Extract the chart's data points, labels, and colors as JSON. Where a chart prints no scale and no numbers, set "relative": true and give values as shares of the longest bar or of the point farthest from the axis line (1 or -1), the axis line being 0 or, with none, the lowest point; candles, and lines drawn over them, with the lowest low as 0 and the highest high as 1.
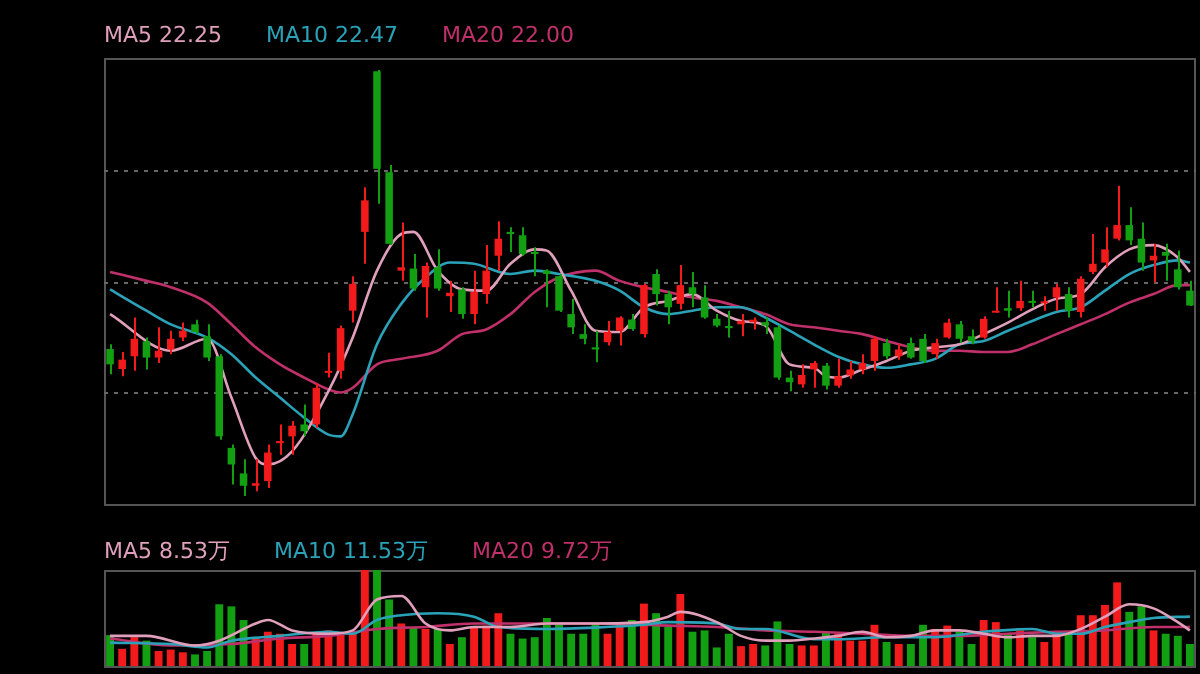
{
  "chart_data": [
    {
      "type": "candlestick",
      "relative": true,
      "grid": true,
      "legend": "top left",
      "marker": "none",
      "categories": [
        null,
        null,
        null,
        null,
        null,
        null,
        null,
        null,
        null,
        null,
        null,
        null,
        null,
        null,
        null,
        null,
        null,
        null,
        null,
        null,
        null,
        null,
        null,
        null,
        null,
        null,
        null,
        null,
        null,
        null,
        null,
        null,
        null,
        null,
        null,
        null,
        null,
        null,
        null,
        null,
        null,
        null,
        null,
        null,
        null,
        null,
        null,
        null,
        null,
        null,
        null,
        null,
        null,
        null,
        null,
        null,
        null,
        null,
        null,
        null,
        null,
        null,
        null,
        null,
        null,
        null,
        null,
        null,
        null,
        null,
        null,
        null,
        null,
        null,
        null,
        null,
        null,
        null,
        null,
        null,
        null,
        null,
        null,
        null,
        null,
        null,
        null,
        null,
        null,
        null
      ],
      "ohlc": [
        [
          0.345,
          0.356,
          0.286,
          0.309
        ],
        [
          0.298,
          0.338,
          0.281,
          0.32
        ],
        [
          0.328,
          0.419,
          0.294,
          0.369
        ],
        [
          0.363,
          0.372,
          0.297,
          0.325
        ],
        [
          0.325,
          0.396,
          0.312,
          0.341
        ],
        [
          0.344,
          0.388,
          0.333,
          0.369
        ],
        [
          0.372,
          0.407,
          0.364,
          0.388
        ],
        [
          0.403,
          0.414,
          0.38,
          0.385
        ],
        [
          0.375,
          0.403,
          0.317,
          0.325
        ],
        [
          0.328,
          0.333,
          0.132,
          0.14
        ],
        [
          0.113,
          0.121,
          0.027,
          0.074
        ],
        [
          0.053,
          0.086,
          0,
          0.024
        ],
        [
          0.024,
          0.086,
          0.011,
          0.03
        ],
        [
          0.035,
          0.121,
          0.019,
          0.102
        ],
        [
          0.124,
          0.168,
          0.097,
          0.129
        ],
        [
          0.14,
          0.176,
          0.097,
          0.165
        ],
        [
          0.168,
          0.215,
          0.14,
          0.152
        ],
        [
          0.168,
          0.265,
          0.16,
          0.254
        ],
        [
          0.289,
          0.336,
          0.278,
          0.294
        ],
        [
          0.294,
          0.4,
          0.275,
          0.394
        ],
        [
          0.435,
          0.516,
          0.407,
          0.498
        ],
        [
          0.62,
          0.725,
          0.545,
          0.694
        ],
        [
          0.997,
          1,
          0.686,
          0.768
        ],
        [
          0.76,
          0.777,
          0.589,
          0.592
        ],
        [
          0.529,
          0.642,
          0.505,
          0.537
        ],
        [
          0.534,
          0.568,
          0.482,
          0.487
        ],
        [
          0.49,
          0.548,
          0.419,
          0.54
        ],
        [
          0.537,
          0.579,
          0.482,
          0.487
        ],
        [
          0.469,
          0.505,
          0.432,
          0.477
        ],
        [
          0.485,
          0.49,
          0.416,
          0.427
        ],
        [
          0.427,
          0.529,
          0.403,
          0.479
        ],
        [
          0.474,
          0.589,
          0.451,
          0.529
        ],
        [
          0.564,
          0.645,
          0.529,
          0.604
        ],
        [
          0.62,
          0.631,
          0.573,
          0.615
        ],
        [
          0.612,
          0.631,
          0.564,
          0.568
        ],
        [
          0.573,
          0.584,
          0.516,
          0.568
        ],
        [
          0.529,
          0.532,
          0.443,
          0.521
        ],
        [
          0.516,
          0.521,
          0.432,
          0.435
        ],
        [
          0.427,
          0.463,
          0.38,
          0.396
        ],
        [
          0.38,
          0.403,
          0.356,
          0.369
        ],
        [
          0.349,
          0.388,
          0.314,
          0.344
        ],
        [
          0.361,
          0.411,
          0.353,
          0.385
        ],
        [
          0.388,
          0.422,
          0.353,
          0.419
        ],
        [
          0.414,
          0.427,
          0.388,
          0.392
        ],
        [
          0.38,
          0.498,
          0.372,
          0.495
        ],
        [
          0.521,
          0.532,
          0.447,
          0.474
        ],
        [
          0.474,
          0.482,
          0.403,
          0.443
        ],
        [
          0.451,
          0.542,
          0.438,
          0.495
        ],
        [
          0.49,
          0.526,
          0.443,
          0.474
        ],
        [
          0.466,
          0.495,
          0.416,
          0.419
        ],
        [
          0.416,
          0.427,
          0.396,
          0.4
        ],
        [
          0.399,
          0.435,
          0.372,
          0.394
        ],
        [
          0.403,
          0.427,
          0.375,
          0.411
        ],
        [
          0.408,
          0.419,
          0.391,
          0.414
        ],
        [
          0.408,
          0.419,
          0.38,
          0.4
        ],
        [
          0.396,
          0.4,
          0.273,
          0.278
        ],
        [
          0.278,
          0.294,
          0.246,
          0.267
        ],
        [
          0.262,
          0.309,
          0.254,
          0.284
        ],
        [
          0.297,
          0.317,
          0.254,
          0.312
        ],
        [
          0.306,
          0.312,
          0.25,
          0.259
        ],
        [
          0.259,
          0.322,
          0.254,
          0.281
        ],
        [
          0.283,
          0.317,
          0.275,
          0.297
        ],
        [
          0.297,
          0.333,
          0.286,
          0.312
        ],
        [
          0.317,
          0.375,
          0.294,
          0.369
        ],
        [
          0.359,
          0.369,
          0.322,
          0.328
        ],
        [
          0.328,
          0.356,
          0.32,
          0.344
        ],
        [
          0.359,
          0.372,
          0.322,
          0.325
        ],
        [
          0.369,
          0.38,
          0.312,
          0.317
        ],
        [
          0.333,
          0.369,
          0.322,
          0.359
        ],
        [
          0.372,
          0.416,
          0.369,
          0.407
        ],
        [
          0.403,
          0.411,
          0.359,
          0.369
        ],
        [
          0.375,
          0.391,
          0.356,
          0.363
        ],
        [
          0.372,
          0.422,
          0.369,
          0.416
        ],
        [
          0.432,
          0.49,
          0.43,
          0.435
        ],
        [
          0.441,
          0.482,
          0.419,
          0.435
        ],
        [
          0.441,
          0.505,
          0.435,
          0.458
        ],
        [
          0.458,
          0.482,
          0.443,
          0.454
        ],
        [
          0.454,
          0.469,
          0.435,
          0.457
        ],
        [
          0.466,
          0.498,
          0.435,
          0.49
        ],
        [
          0.474,
          0.49,
          0.419,
          0.435
        ],
        [
          0.432,
          0.516,
          0.419,
          0.51
        ],
        [
          0.526,
          0.615,
          0.521,
          0.545
        ],
        [
          0.548,
          0.631,
          0.537,
          0.579
        ],
        [
          0.604,
          0.728,
          0.6,
          0.636
        ],
        [
          0.636,
          0.678,
          0.589,
          0.6
        ],
        [
          0.604,
          0.642,
          0.529,
          0.548
        ],
        [
          0.553,
          0.592,
          0.501,
          0.564
        ],
        [
          0.573,
          0.592,
          0.505,
          0.564
        ],
        [
          0.532,
          0.576,
          0.485,
          0.49
        ],
        [
          0.482,
          0.505,
          0.446,
          0.447
        ]
      ],
      "colors": [
        "#12a012",
        "#f21a1a",
        "#f21a1a",
        "#12a012",
        "#f21a1a",
        "#f21a1a",
        "#f21a1a",
        "#12a012",
        "#12a012",
        "#12a012",
        "#12a012",
        "#12a012",
        "#f21a1a",
        "#f21a1a",
        "#f21a1a",
        "#f21a1a",
        "#12a012",
        "#f21a1a",
        "#f21a1a",
        "#f21a1a",
        "#f21a1a",
        "#f21a1a",
        "#12a012",
        "#12a012",
        "#f21a1a",
        "#12a012",
        "#f21a1a",
        "#12a012",
        "#f21a1a",
        "#12a012",
        "#f21a1a",
        "#f21a1a",
        "#f21a1a",
        "#12a012",
        "#12a012",
        "#12a012",
        "#12a012",
        "#12a012",
        "#12a012",
        "#12a012",
        "#12a012",
        "#f21a1a",
        "#f21a1a",
        "#12a012",
        "#f21a1a",
        "#12a012",
        "#12a012",
        "#f21a1a",
        "#12a012",
        "#12a012",
        "#12a012",
        "#12a012",
        "#f21a1a",
        "#f21a1a",
        "#12a012",
        "#12a012",
        "#12a012",
        "#f21a1a",
        "#f21a1a",
        "#12a012",
        "#f21a1a",
        "#f21a1a",
        "#f21a1a",
        "#f21a1a",
        "#12a012",
        "#f21a1a",
        "#12a012",
        "#12a012",
        "#f21a1a",
        "#f21a1a",
        "#12a012",
        "#12a012",
        "#f21a1a",
        "#f21a1a",
        "#12a012",
        "#f21a1a",
        "#12a012",
        "#f21a1a",
        "#f21a1a",
        "#12a012",
        "#f21a1a",
        "#f21a1a",
        "#f21a1a",
        "#f21a1a",
        "#12a012",
        "#12a012",
        "#f21a1a",
        "#12a012",
        "#12a012",
        "#12a012"
      ],
      "series": [
        {
          "type": "line",
          "name": "MA5 22.25",
          "color": "#e0a0bc",
          "values": [
            0.427,
            null,
            null,
            null,
            null,
            0.341,
            null,
            null,
            0.369,
            null,
            0.231,
            null,
            0.089,
            0.074,
            null,
            0.105,
            null,
            null,
            0.246,
            null,
            0.372,
            null,
            0.529,
            null,
            0.615,
            0.62,
            null,
            0.529,
            null,
            0.485,
            null,
            0.482,
            null,
            0.545,
            null,
            0.579,
            0.576,
            null,
            0.482,
            null,
            0.388,
            null,
            0.385,
            null,
            0.443,
            null,
            0.458,
            null,
            0.474,
            null,
            0.435,
            null,
            0.411,
            null,
            0.4,
            null,
            0.309,
            null,
            0.301,
            0.281,
            0.278,
            null,
            0.297,
            null,
            0.317,
            null,
            0.341,
            null,
            0.349,
            null,
            0.356,
            null,
            0.38,
            null,
            0.407,
            null,
            0.438,
            null,
            0.463,
            null,
            0.474,
            null,
            0.537,
            null,
            0.579,
            null,
            0.589,
            null,
            0.56,
            0.526
          ]
        },
        {
          "type": "line",
          "name": "MA10 22.47",
          "color": "#2aa3b8",
          "values": [
            0.485,
            null,
            null,
            0.435,
            null,
            0.403,
            null,
            null,
            0.372,
            null,
            0.333,
            null,
            0.278,
            null,
            0.231,
            null,
            0.184,
            null,
            0.144,
            0.14,
            0.192,
            null,
            0.356,
            null,
            0.451,
            null,
            0.513,
            null,
            0.548,
            null,
            0.545,
            null,
            null,
            0.521,
            null,
            0.529,
            null,
            0.521,
            null,
            null,
            0.505,
            null,
            0.482,
            null,
            0.443,
            null,
            0.427,
            null,
            0.435,
            null,
            0.443,
            null,
            0.443,
            null,
            0.419,
            null,
            0.388,
            null,
            0.356,
            null,
            0.327,
            null,
            0.309,
            null,
            0.301,
            null,
            0.309,
            null,
            0.322,
            null,
            0.356,
            null,
            0.364,
            null,
            0.388,
            null,
            0.411,
            null,
            0.432,
            null,
            0.443,
            null,
            0.482,
            null,
            0.521,
            null,
            0.542,
            null,
            0.553,
            0.548
          ]
        },
        {
          "type": "line",
          "name": "MA20 22.00",
          "color": "#c0306a",
          "values": [
            0.526,
            null,
            null,
            0.505,
            null,
            0.49,
            null,
            null,
            0.454,
            null,
            0.403,
            null,
            0.349,
            null,
            0.309,
            null,
            0.278,
            null,
            0.25,
            0.243,
            0.254,
            null,
            0.309,
            null,
            0.322,
            null,
            null,
            0.341,
            null,
            0.38,
            null,
            0.391,
            null,
            0.427,
            null,
            0.479,
            null,
            0.513,
            null,
            null,
            0.529,
            null,
            0.505,
            null,
            0.49,
            null,
            0.479,
            null,
            0.466,
            null,
            0.458,
            null,
            0.443,
            null,
            0.427,
            null,
            0.403,
            null,
            0.396,
            null,
            0.388,
            null,
            0.38,
            null,
            0.364,
            null,
            0.349,
            null,
            0.341,
            null,
            0.341,
            null,
            0.338,
            null,
            0.338,
            null,
            0.356,
            null,
            0.38,
            null,
            0.403,
            null,
            0.427,
            null,
            0.454,
            null,
            0.474,
            null,
            0.495,
            0.495
          ]
        }
      ]
    },
    {
      "type": "bar",
      "relative": true,
      "legend": "top left",
      "marker": "none",
      "categories": [
        null,
        null,
        null,
        null,
        null,
        null,
        null,
        null,
        null,
        null,
        null,
        null,
        null,
        null,
        null,
        null,
        null,
        null,
        null,
        null,
        null,
        null,
        null,
        null,
        null,
        null,
        null,
        null,
        null,
        null,
        null,
        null,
        null,
        null,
        null,
        null,
        null,
        null,
        null,
        null,
        null,
        null,
        null,
        null,
        null,
        null,
        null,
        null,
        null,
        null,
        null,
        null,
        null,
        null,
        null,
        null,
        null,
        null,
        null,
        null,
        null,
        null,
        null,
        null,
        null,
        null,
        null,
        null,
        null,
        null,
        null,
        null,
        null,
        null,
        null,
        null,
        null,
        null,
        null,
        null,
        null,
        null,
        null,
        null,
        null,
        null,
        null,
        null,
        null,
        null
      ],
      "series": [
        {
          "type": "bar",
          "colors": [
            "#12a012",
            "#f21a1a",
            "#f21a1a",
            "#12a012",
            "#f21a1a",
            "#f21a1a",
            "#f21a1a",
            "#12a012",
            "#12a012",
            "#12a012",
            "#12a012",
            "#12a012",
            "#f21a1a",
            "#f21a1a",
            "#f21a1a",
            "#f21a1a",
            "#12a012",
            "#f21a1a",
            "#f21a1a",
            "#f21a1a",
            "#f21a1a",
            "#f21a1a",
            "#12a012",
            "#12a012",
            "#f21a1a",
            "#12a012",
            "#f21a1a",
            "#12a012",
            "#f21a1a",
            "#12a012",
            "#f21a1a",
            "#f21a1a",
            "#f21a1a",
            "#12a012",
            "#12a012",
            "#12a012",
            "#12a012",
            "#12a012",
            "#12a012",
            "#12a012",
            "#12a012",
            "#f21a1a",
            "#f21a1a",
            "#12a012",
            "#f21a1a",
            "#12a012",
            "#12a012",
            "#f21a1a",
            "#12a012",
            "#12a012",
            "#12a012",
            "#12a012",
            "#f21a1a",
            "#f21a1a",
            "#12a012",
            "#12a012",
            "#12a012",
            "#f21a1a",
            "#f21a1a",
            "#12a012",
            "#f21a1a",
            "#f21a1a",
            "#f21a1a",
            "#f21a1a",
            "#12a012",
            "#f21a1a",
            "#12a012",
            "#12a012",
            "#f21a1a",
            "#f21a1a",
            "#12a012",
            "#12a012",
            "#f21a1a",
            "#f21a1a",
            "#12a012",
            "#f21a1a",
            "#12a012",
            "#f21a1a",
            "#f21a1a",
            "#12a012",
            "#f21a1a",
            "#f21a1a",
            "#f21a1a",
            "#f21a1a",
            "#12a012",
            "#12a012",
            "#f21a1a",
            "#12a012",
            "#12a012",
            "#12a012"
          ],
          "values": [
            0.321,
            0.179,
            0.3,
            0.264,
            0.157,
            0.171,
            0.143,
            0.121,
            0.157,
            0.643,
            0.621,
            0.479,
            0.3,
            0.357,
            0.336,
            0.229,
            0.229,
            0.336,
            0.371,
            0.336,
            0.336,
            1,
            1,
            0.693,
            0.443,
            0.407,
            0.386,
            0.386,
            0.229,
            0.3,
            0.407,
            0.421,
            0.55,
            0.336,
            0.286,
            0.3,
            0.5,
            0.443,
            0.336,
            0.336,
            0.443,
            0.336,
            0.443,
            0.479,
            0.65,
            0.55,
            0.407,
            0.75,
            0.357,
            0.371,
            0.193,
            0.336,
            0.207,
            0.229,
            0.214,
            0.464,
            0.229,
            0.214,
            0.214,
            0.35,
            0.336,
            0.264,
            0.264,
            0.429,
            0.25,
            0.229,
            0.229,
            0.429,
            0.386,
            0.421,
            0.357,
            0.229,
            0.479,
            0.457,
            0.336,
            0.371,
            0.3,
            0.25,
            0.336,
            0.336,
            0.529,
            0.529,
            0.636,
            0.871,
            0.564,
            0.621,
            0.371,
            0.336,
            0.314,
            0.229
          ]
        },
        {
          "type": "line",
          "name": "MA5 8.53万",
          "color": "#e0a0bc",
          "values": [
            0.314,
            null,
            null,
            0.314,
            null,
            null,
            null,
            0.214,
            null,
            0.264,
            null,
            null,
            0.443,
            0.479,
            null,
            0.371,
            null,
            null,
            0.336,
            null,
            0.371,
            null,
            0.693,
            null,
            0.729,
            null,
            0.443,
            null,
            0.371,
            null,
            0.407,
            null,
            null,
            0.407,
            null,
            null,
            0.443,
            null,
            null,
            null,
            0.443,
            null,
            null,
            null,
            0.457,
            null,
            0.514,
            0.564,
            null,
            null,
            0.457,
            null,
            0.314,
            null,
            0.264,
            null,
            0.264,
            null,
            0.286,
            null,
            0.314,
            null,
            0.357,
            null,
            0.3,
            null,
            0.314,
            null,
            0.371,
            null,
            0.371,
            null,
            0.336,
            null,
            0.3,
            null,
            0.314,
            null,
            0.314,
            null,
            0.386,
            null,
            0.514,
            null,
            0.643,
            null,
            0.6,
            null,
            0.457,
            0.371
          ]
        },
        {
          "type": "line",
          "name": "MA10 11.53万",
          "color": "#2aa3b8",
          "values": [
            0.243,
            null,
            null,
            null,
            null,
            0.229,
            null,
            null,
            0.193,
            null,
            0.264,
            null,
            null,
            null,
            0.314,
            null,
            null,
            null,
            0.357,
            null,
            0.336,
            null,
            0.479,
            null,
            0.529,
            null,
            null,
            0.55,
            null,
            null,
            0.514,
            null,
            0.407,
            null,
            null,
            null,
            0.386,
            null,
            null,
            null,
            0.4,
            null,
            null,
            null,
            0.429,
            null,
            0.457,
            null,
            null,
            null,
            0.443,
            null,
            0.386,
            null,
            0.386,
            null,
            null,
            null,
            0.279,
            null,
            0.279,
            null,
            null,
            null,
            0.3,
            null,
            null,
            null,
            0.3,
            null,
            null,
            null,
            0.357,
            null,
            null,
            null,
            0.386,
            null,
            0.336,
            null,
            0.336,
            null,
            0.407,
            null,
            0.457,
            null,
            0.5,
            null,
            null,
            0.514
          ]
        },
        {
          "type": "line",
          "name": "MA20 9.72万",
          "color": "#c0306a",
          "values": [
            0.286,
            null,
            null,
            null,
            null,
            0.214,
            null,
            null,
            null,
            null,
            0.229,
            null,
            null,
            null,
            0.286,
            null,
            null,
            null,
            0.314,
            null,
            null,
            null,
            0.386,
            null,
            null,
            null,
            0.407,
            null,
            null,
            null,
            0.443,
            null,
            null,
            null,
            null,
            null,
            0.443,
            null,
            null,
            null,
            0.443,
            null,
            null,
            null,
            0.429,
            null,
            0.421,
            null,
            null,
            null,
            0.407,
            null,
            null,
            null,
            0.371,
            null,
            null,
            null,
            0.357,
            null,
            null,
            null,
            0.336,
            null,
            null,
            null,
            0.314,
            null,
            null,
            null,
            0.314,
            null,
            null,
            null,
            0.336,
            null,
            null,
            null,
            0.357,
            null,
            null,
            null,
            0.371,
            null,
            null,
            null,
            0.407,
            null,
            null,
            0.407
          ]
        }
      ]
    }
  ]
}
